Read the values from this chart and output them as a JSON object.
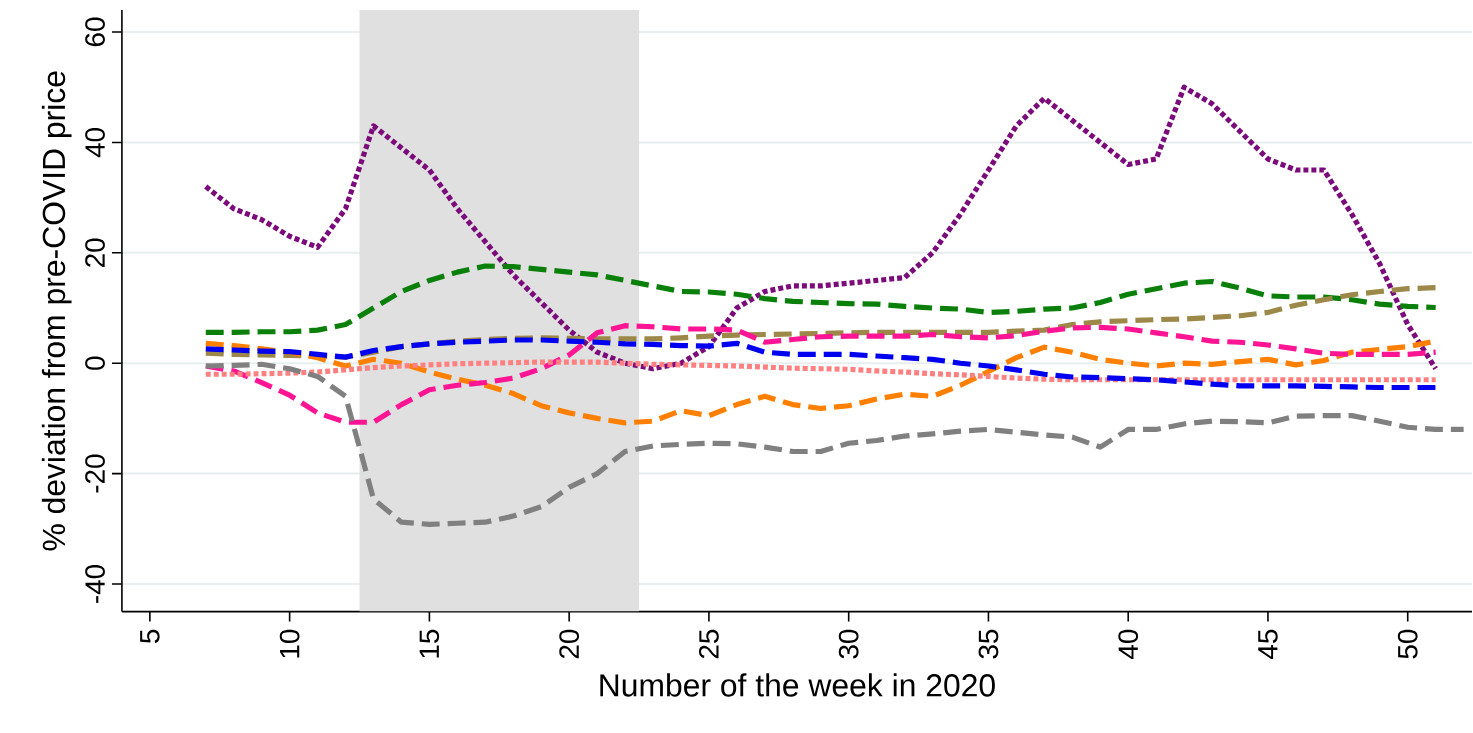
{
  "chart_data": {
    "type": "line",
    "xlabel": "Number of the week in 2020",
    "ylabel": "% deviation from pre-COVID price",
    "xlim": [
      4,
      52.3
    ],
    "ylim": [
      -45,
      64
    ],
    "xticks": [
      5,
      10,
      15,
      20,
      25,
      30,
      35,
      40,
      45,
      50
    ],
    "yticks": [
      -40,
      -20,
      0,
      20,
      40,
      60
    ],
    "grid": "y",
    "bands": [
      {
        "axis": "x",
        "from": 12.5,
        "to": 22.5,
        "color": "#e0e0e0"
      }
    ],
    "series": [
      {
        "color": "#7b0a7b",
        "line_style": "dotted",
        "x": [
          7,
          8,
          9,
          10,
          11,
          12,
          13,
          14,
          15,
          16,
          17,
          18,
          19,
          20,
          21,
          22,
          23,
          24,
          25,
          26,
          27,
          28,
          29,
          30,
          31,
          32,
          33,
          34,
          35,
          36,
          37,
          38,
          39,
          40,
          41,
          42,
          43,
          44,
          45,
          46,
          47,
          48,
          49,
          50,
          51
        ],
        "values": [
          32,
          28,
          26,
          23,
          21,
          28,
          43,
          39,
          35,
          28,
          22,
          16,
          11,
          6,
          2,
          0,
          -1,
          0,
          3,
          10,
          13,
          14,
          14,
          14.5,
          15,
          15.5,
          20,
          27,
          35,
          43,
          48,
          44,
          40,
          36,
          37,
          50,
          47,
          42,
          37,
          35,
          35,
          27,
          18,
          7,
          -1
        ]
      },
      {
        "color": "#0a800a",
        "line_style": "dashed",
        "x": [
          7,
          8,
          9,
          10,
          11,
          12,
          13,
          14,
          15,
          16,
          17,
          18,
          19,
          20,
          21,
          22,
          23,
          24,
          25,
          26,
          27,
          28,
          29,
          30,
          31,
          32,
          33,
          34,
          35,
          36,
          37,
          38,
          39,
          40,
          41,
          42,
          43,
          44,
          45,
          46,
          47,
          48,
          49,
          50,
          51
        ],
        "values": [
          5.6,
          5.6,
          5.7,
          5.7,
          6,
          7,
          10,
          13,
          15,
          16.5,
          17.6,
          17.5,
          17,
          16.5,
          16,
          15,
          14,
          13,
          12.9,
          12.5,
          11.7,
          11.2,
          11,
          10.8,
          10.7,
          10.3,
          10,
          9.8,
          9.2,
          9.4,
          9.8,
          10,
          11,
          12.5,
          13.5,
          14.5,
          14.8,
          13.6,
          12.2,
          12,
          12,
          11.5,
          10.7,
          10.3,
          10.1
        ]
      },
      {
        "color": "#0000f0",
        "line_style": "dashed",
        "x": [
          7,
          8,
          9,
          10,
          11,
          12,
          13,
          14,
          15,
          16,
          17,
          18,
          19,
          20,
          21,
          22,
          23,
          24,
          25,
          26,
          27,
          28,
          29,
          30,
          31,
          32,
          33,
          34,
          35,
          36,
          37,
          38,
          39,
          40,
          41,
          42,
          43,
          44,
          45,
          46,
          47,
          48,
          49,
          50,
          51
        ],
        "values": [
          2.6,
          2.4,
          2.2,
          2.1,
          1.6,
          1.1,
          2.3,
          3,
          3.5,
          3.8,
          4,
          4.2,
          4.2,
          4,
          3.8,
          3.5,
          3.4,
          3.2,
          3.1,
          3.6,
          2,
          1.6,
          1.6,
          1.6,
          1.3,
          1,
          0.7,
          0,
          -0.5,
          -1.2,
          -2,
          -2.5,
          -2.6,
          -2.8,
          -3,
          -3.4,
          -3.8,
          -4.1,
          -4.1,
          -4.1,
          -4.2,
          -4.3,
          -4.4,
          -4.4,
          -4.4
        ]
      },
      {
        "color": "#9c8848",
        "line_style": "dashed",
        "x": [
          7,
          8,
          9,
          10,
          11,
          12,
          13,
          14,
          15,
          16,
          17,
          18,
          19,
          20,
          21,
          22,
          23,
          24,
          25,
          26,
          27,
          28,
          29,
          30,
          31,
          32,
          33,
          34,
          35,
          36,
          37,
          38,
          39,
          40,
          41,
          42,
          43,
          44,
          45,
          46,
          47,
          48,
          49,
          50,
          51
        ],
        "values": [
          1.8,
          1.6,
          1.5,
          1.4,
          1.3,
          1.1,
          2,
          3,
          3.5,
          4,
          4.3,
          4.5,
          4.6,
          4.5,
          4.4,
          4.4,
          4.4,
          4.6,
          4.9,
          5.1,
          5.2,
          5.3,
          5.4,
          5.5,
          5.6,
          5.6,
          5.6,
          5.6,
          5.6,
          5.8,
          6,
          7,
          7.5,
          7.7,
          7.9,
          8,
          8.3,
          8.6,
          9.2,
          10.5,
          11.5,
          12.4,
          13,
          13.5,
          13.7
        ]
      },
      {
        "color": "#ff8000",
        "line_style": "dashed",
        "x": [
          7,
          8,
          9,
          10,
          11,
          12,
          13,
          14,
          15,
          16,
          17,
          18,
          19,
          20,
          21,
          22,
          23,
          24,
          25,
          26,
          27,
          28,
          29,
          30,
          31,
          32,
          33,
          34,
          35,
          36,
          37,
          38,
          39,
          40,
          41,
          42,
          43,
          44,
          45,
          46,
          47,
          48,
          49,
          50,
          51
        ],
        "values": [
          3.6,
          3.2,
          2.6,
          2,
          1,
          -0.5,
          0.7,
          0,
          -1.6,
          -2.9,
          -4,
          -5.5,
          -7.7,
          -9,
          -10,
          -10.8,
          -10.5,
          -8.6,
          -9.5,
          -7.5,
          -6,
          -7.5,
          -8.2,
          -7.7,
          -6.5,
          -5.6,
          -6,
          -4,
          -1.5,
          1,
          2.9,
          2,
          0.7,
          0,
          -0.5,
          0,
          -0.2,
          0.3,
          0.7,
          -0.3,
          0.5,
          2,
          2.5,
          3,
          4
        ]
      },
      {
        "color": "#ff1493",
        "line_style": "dashed",
        "x": [
          7,
          8,
          9,
          10,
          11,
          12,
          13,
          14,
          15,
          16,
          17,
          18,
          19,
          20,
          21,
          22,
          23,
          24,
          25,
          26,
          27,
          28,
          29,
          30,
          31,
          32,
          33,
          34,
          35,
          36,
          37,
          38,
          39,
          40,
          41,
          42,
          43,
          44,
          45,
          46,
          47,
          48,
          49,
          50,
          51
        ],
        "values": [
          -0.5,
          -1.4,
          -3.5,
          -5.8,
          -9,
          -10.7,
          -10.7,
          -7.5,
          -4.8,
          -4,
          -3.5,
          -2.7,
          -1,
          1.5,
          5.5,
          6.8,
          6.6,
          6.2,
          6.2,
          6,
          3.8,
          4.3,
          4.8,
          4.9,
          4.9,
          4.9,
          5.2,
          4.8,
          4.6,
          5,
          5.8,
          6.4,
          6.5,
          6.2,
          5.5,
          4.8,
          4,
          3.8,
          3.3,
          2.6,
          1.8,
          1.6,
          1.6,
          1.6,
          2
        ]
      },
      {
        "color": "#ff8080",
        "line_style": "dotted",
        "x": [
          7,
          8,
          9,
          10,
          11,
          12,
          13,
          14,
          15,
          16,
          17,
          18,
          19,
          20,
          21,
          22,
          23,
          24,
          25,
          26,
          27,
          28,
          29,
          30,
          31,
          32,
          33,
          34,
          35,
          36,
          37,
          38,
          39,
          40,
          41,
          42,
          43,
          44,
          45,
          46,
          47,
          48,
          49,
          50,
          51
        ],
        "values": [
          -2,
          -2,
          -1.9,
          -1.8,
          -1.6,
          -1.2,
          -0.8,
          -0.5,
          -0.3,
          -0.1,
          0,
          0.1,
          0.2,
          0.2,
          0.2,
          0,
          -0.2,
          -0.3,
          -0.4,
          -0.5,
          -0.7,
          -0.9,
          -1,
          -1.1,
          -1.4,
          -1.6,
          -1.9,
          -2.1,
          -2.4,
          -2.7,
          -2.9,
          -3,
          -3,
          -3,
          -3,
          -3,
          -3,
          -3,
          -3,
          -3,
          -3,
          -3,
          -3,
          -3,
          -3
        ]
      },
      {
        "color": "#808080",
        "line_style": "dashed",
        "x": [
          7,
          8,
          9,
          10,
          11,
          12,
          13,
          14,
          15,
          16,
          17,
          18,
          19,
          20,
          21,
          22,
          23,
          24,
          25,
          26,
          27,
          28,
          29,
          30,
          31,
          32,
          33,
          34,
          35,
          36,
          37,
          38,
          39,
          40,
          41,
          42,
          43,
          44,
          45,
          46,
          47,
          48,
          49,
          50,
          51,
          52
        ],
        "values": [
          -0.5,
          -0.4,
          -0.2,
          -1,
          -2.4,
          -6,
          -24.6,
          -28.8,
          -29.2,
          -29,
          -28.8,
          -27.7,
          -26,
          -22.5,
          -20,
          -16,
          -15,
          -14.7,
          -14.5,
          -14.6,
          -15.2,
          -16,
          -16,
          -14.5,
          -14,
          -13.2,
          -12.8,
          -12.3,
          -12,
          -12.5,
          -13,
          -13.4,
          -15.2,
          -12,
          -12,
          -11,
          -10.5,
          -10.6,
          -10.8,
          -9.6,
          -9.5,
          -9.5,
          -10.5,
          -11.6,
          -12,
          -12
        ]
      }
    ]
  }
}
